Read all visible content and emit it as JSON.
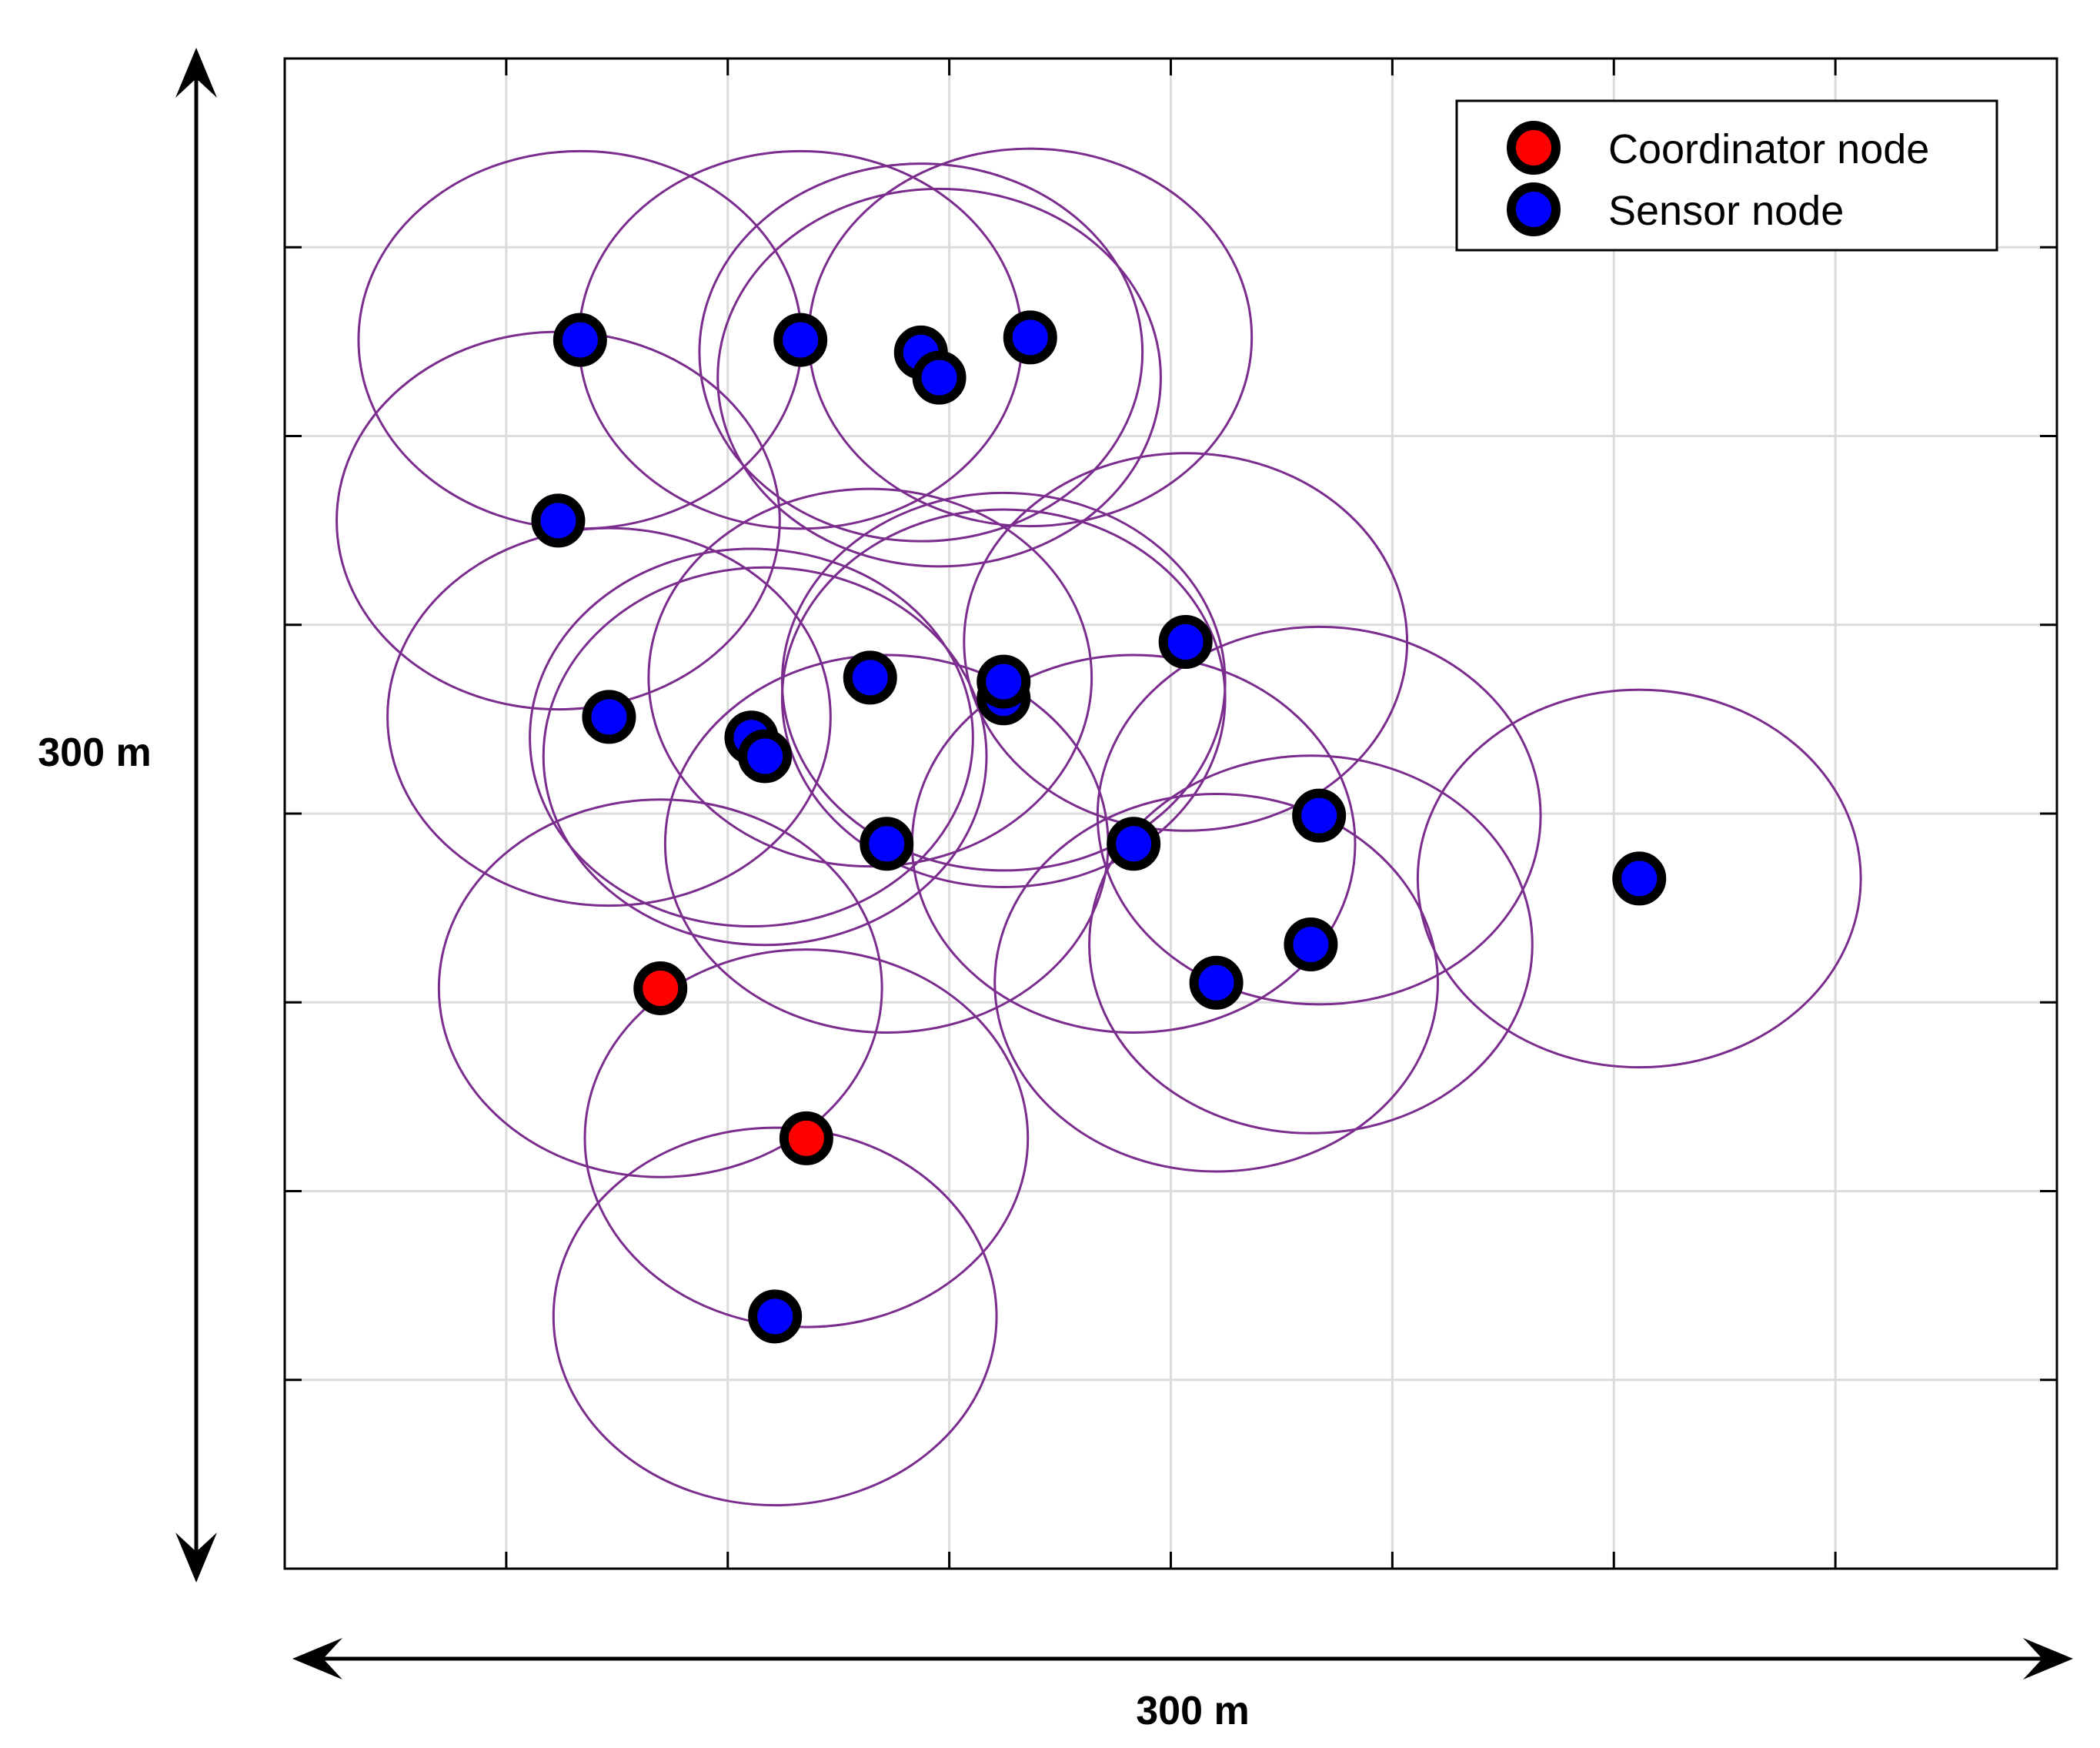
{
  "chart_data": {
    "type": "scatter",
    "title": "",
    "xlabel": "300 m",
    "ylabel": "300 m",
    "xlim": [
      0,
      300
    ],
    "ylim": [
      0,
      300
    ],
    "grid": true,
    "grid_step": 37.5,
    "legend": {
      "placement": "top-right",
      "entries": [
        {
          "label": "Coordinator node",
          "color": "#ff0000"
        },
        {
          "label": "Sensor node",
          "color": "#0000ff"
        }
      ]
    },
    "range_circle_radius": 37.5,
    "range_circle_color": "#7b2d8e",
    "series": [
      {
        "name": "Coordinator node",
        "color": "#ff0000",
        "points": [
          [
            63.6,
            115.3
          ],
          [
            88.3,
            85.5
          ]
        ]
      },
      {
        "name": "Sensor node",
        "color": "#0000ff",
        "points": [
          [
            50.0,
            244.1
          ],
          [
            87.3,
            244.1
          ],
          [
            107.7,
            241.6
          ],
          [
            110.8,
            236.6
          ],
          [
            126.2,
            244.6
          ],
          [
            46.3,
            208.2
          ],
          [
            54.9,
            169.2
          ],
          [
            79.0,
            165.1
          ],
          [
            81.3,
            161.4
          ],
          [
            99.1,
            177.0
          ],
          [
            101.9,
            144.0
          ],
          [
            121.7,
            172.9
          ],
          [
            121.7,
            176.2
          ],
          [
            152.5,
            184.1
          ],
          [
            143.7,
            144.0
          ],
          [
            175.1,
            149.6
          ],
          [
            157.7,
            116.4
          ],
          [
            173.7,
            124.0
          ],
          [
            229.3,
            137.1
          ],
          [
            83.0,
            50.1
          ]
        ]
      }
    ]
  }
}
